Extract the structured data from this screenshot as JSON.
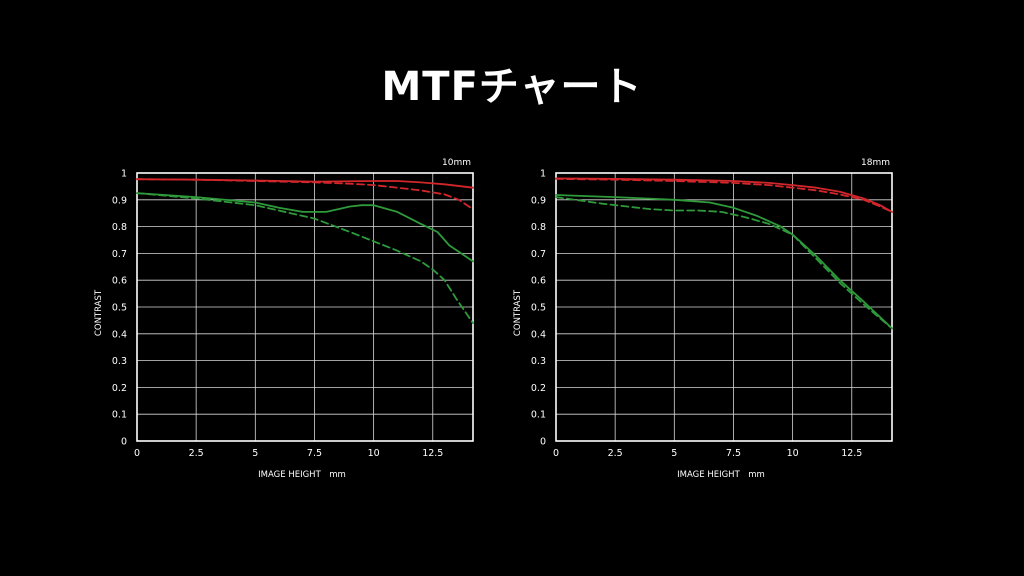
{
  "title": "MTFチャート",
  "chart_data": [
    {
      "type": "line",
      "focal_label": "10mm",
      "xlabel": "IMAGE HEIGHT　mm",
      "ylabel": "CONTRAST",
      "xlim": [
        0,
        14.2
      ],
      "ylim": [
        0,
        1
      ],
      "xticks": [
        "0",
        "2.5",
        "5",
        "7.5",
        "10",
        "12.5"
      ],
      "yticks": [
        "0",
        "0.1",
        "0.2",
        "0.3",
        "0.4",
        "0.5",
        "0.6",
        "0.7",
        "0.8",
        "0.9",
        "1"
      ],
      "grid": true,
      "series": [
        {
          "color": "#d2262b",
          "dash": false,
          "x": [
            0,
            2.5,
            5,
            7.5,
            10,
            11,
            12,
            13,
            14.2
          ],
          "y": [
            0.977,
            0.975,
            0.972,
            0.968,
            0.97,
            0.97,
            0.965,
            0.958,
            0.945
          ]
        },
        {
          "color": "#d2262b",
          "dash": true,
          "x": [
            0,
            2.5,
            5,
            7.5,
            9,
            10,
            11,
            12,
            13,
            13.6,
            14.2
          ],
          "y": [
            0.977,
            0.975,
            0.97,
            0.965,
            0.96,
            0.955,
            0.945,
            0.935,
            0.92,
            0.9,
            0.865
          ]
        },
        {
          "color": "#2e9a3a",
          "dash": false,
          "x": [
            0,
            2.5,
            5,
            6,
            7,
            8,
            9,
            9.5,
            10,
            11,
            12,
            12.7,
            13.2,
            13.7,
            14.2
          ],
          "y": [
            0.925,
            0.91,
            0.89,
            0.87,
            0.855,
            0.855,
            0.875,
            0.88,
            0.88,
            0.855,
            0.81,
            0.78,
            0.73,
            0.7,
            0.67
          ]
        },
        {
          "color": "#2e9a3a",
          "dash": true,
          "x": [
            0,
            2.5,
            5,
            7.5,
            9,
            10,
            11,
            12,
            12.5,
            13,
            13.5,
            14.2
          ],
          "y": [
            0.925,
            0.905,
            0.88,
            0.83,
            0.78,
            0.745,
            0.71,
            0.67,
            0.64,
            0.6,
            0.53,
            0.44
          ]
        }
      ]
    },
    {
      "type": "line",
      "focal_label": "18mm",
      "xlabel": "IMAGE HEIGHT　mm",
      "ylabel": "CONTRAST",
      "xlim": [
        0,
        14.2
      ],
      "ylim": [
        0,
        1
      ],
      "xticks": [
        "0",
        "2.5",
        "5",
        "7.5",
        "10",
        "12.5"
      ],
      "yticks": [
        "0",
        "0.1",
        "0.2",
        "0.3",
        "0.4",
        "0.5",
        "0.6",
        "0.7",
        "0.8",
        "0.9",
        "1"
      ],
      "grid": true,
      "series": [
        {
          "color": "#d2262b",
          "dash": false,
          "x": [
            0,
            2.5,
            5,
            7.5,
            9,
            10,
            11,
            12,
            13,
            13.7,
            14.2
          ],
          "y": [
            0.98,
            0.978,
            0.975,
            0.97,
            0.963,
            0.955,
            0.945,
            0.93,
            0.905,
            0.88,
            0.855
          ]
        },
        {
          "color": "#d2262b",
          "dash": true,
          "x": [
            0,
            2.5,
            5,
            7.5,
            9,
            10,
            11,
            12,
            13,
            13.7,
            14.2
          ],
          "y": [
            0.978,
            0.975,
            0.97,
            0.963,
            0.955,
            0.945,
            0.935,
            0.92,
            0.9,
            0.875,
            0.855
          ]
        },
        {
          "color": "#2e9a3a",
          "dash": false,
          "x": [
            0,
            2.5,
            5,
            6.5,
            7.5,
            8.5,
            9.5,
            10,
            11,
            12,
            13,
            14.2
          ],
          "y": [
            0.918,
            0.91,
            0.9,
            0.89,
            0.87,
            0.84,
            0.8,
            0.77,
            0.69,
            0.6,
            0.52,
            0.42
          ]
        },
        {
          "color": "#2e9a3a",
          "dash": true,
          "x": [
            0,
            2,
            4,
            5,
            6,
            7,
            8,
            9,
            10,
            11,
            12,
            13,
            14.2
          ],
          "y": [
            0.91,
            0.885,
            0.865,
            0.86,
            0.86,
            0.855,
            0.835,
            0.81,
            0.77,
            0.68,
            0.59,
            0.51,
            0.42
          ]
        }
      ]
    }
  ]
}
